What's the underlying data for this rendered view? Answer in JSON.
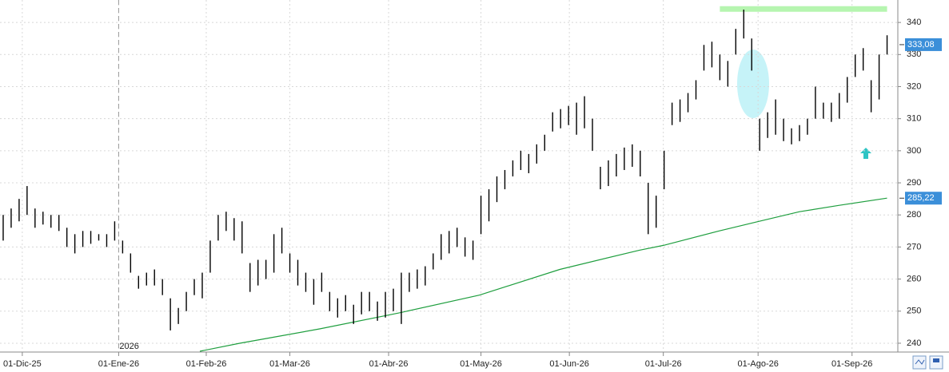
{
  "chart_data": {
    "type": "ohlc",
    "high": [
      280,
      282,
      285,
      289,
      282,
      281,
      280,
      280,
      276,
      274,
      275,
      275,
      274,
      274,
      278,
      272,
      268,
      261,
      262,
      263,
      260,
      254,
      251,
      256,
      260,
      262,
      272,
      280,
      281,
      279,
      278,
      265,
      266,
      266,
      274,
      276,
      268,
      266,
      262,
      260,
      262,
      256,
      254,
      255,
      252,
      256,
      256,
      253,
      256,
      257,
      262,
      262,
      263,
      264,
      268,
      274,
      275,
      276,
      273,
      272,
      286,
      288,
      292,
      294,
      297,
      300,
      299,
      302,
      305,
      312,
      313,
      314,
      315,
      317,
      310,
      295,
      297,
      299,
      301,
      302,
      300,
      290,
      286,
      300,
      315,
      316,
      318,
      322,
      333,
      334,
      330,
      328,
      338,
      344,
      335,
      310,
      312,
      316,
      310,
      307,
      308,
      310,
      320,
      315,
      315,
      318,
      323,
      330,
      332,
      322,
      330,
      336
    ],
    "low": [
      272,
      276,
      278,
      280,
      276,
      277,
      276,
      275,
      270,
      268,
      270,
      271,
      272,
      270,
      272,
      268,
      262,
      257,
      258,
      258,
      255,
      244,
      246,
      250,
      255,
      254,
      262,
      272,
      275,
      272,
      268,
      256,
      258,
      260,
      262,
      268,
      262,
      258,
      256,
      252,
      256,
      250,
      248,
      250,
      246,
      249,
      250,
      247,
      248,
      250,
      246,
      256,
      257,
      258,
      263,
      266,
      268,
      270,
      267,
      266,
      274,
      278,
      284,
      288,
      292,
      294,
      293,
      296,
      300,
      306,
      307,
      308,
      305,
      307,
      300,
      288,
      289,
      292,
      294,
      295,
      292,
      274,
      276,
      288,
      308,
      309,
      312,
      316,
      325,
      326,
      322,
      320,
      330,
      335,
      325,
      300,
      304,
      305,
      303,
      302,
      303,
      305,
      310,
      310,
      309,
      310,
      315,
      323,
      325,
      312,
      316,
      330
    ],
    "color": "#000000",
    "ma": {
      "x": [
        24.7,
        29.7,
        39.8,
        49.8,
        59.8,
        69.9,
        79.9,
        82.9,
        89.9,
        94.9,
        100,
        105,
        111
      ],
      "values": [
        237.5,
        240,
        244.5,
        249.5,
        255,
        263,
        269,
        270.5,
        275,
        278,
        281,
        283,
        285.22
      ],
      "color": "#1e9e3e"
    },
    "xlim": [
      -0.4,
      112.25
    ],
    "xticks": [
      {
        "value": 2.4,
        "label": "01-Dic-25"
      },
      {
        "value": 14.5,
        "label": "01-Ene-26"
      },
      {
        "value": 25.5,
        "label": "01-Feb-26"
      },
      {
        "value": 36,
        "label": "01-Mar-26"
      },
      {
        "value": 48.4,
        "label": "01-Abr-26"
      },
      {
        "value": 60,
        "label": "01-May-26"
      },
      {
        "value": 71.1,
        "label": "01-Jun-26"
      },
      {
        "value": 82.9,
        "label": "01-Jul-26"
      },
      {
        "value": 94.8,
        "label": "01-Ago-26"
      },
      {
        "value": 106.6,
        "label": "01-Sep-26"
      }
    ],
    "year_marker": {
      "value": 14.5,
      "label": "2026"
    },
    "ylim": [
      237.5,
      347
    ],
    "yticks": [
      240,
      250,
      260,
      270,
      280,
      290,
      300,
      310,
      320,
      330,
      340
    ],
    "grid": true,
    "price_labels": [
      {
        "value": 333.08,
        "label": "333,08"
      },
      {
        "value": 285.22,
        "label": "285,22"
      }
    ],
    "resistance": {
      "value": 344.2,
      "x": [
        90,
        111
      ]
    }
  }
}
